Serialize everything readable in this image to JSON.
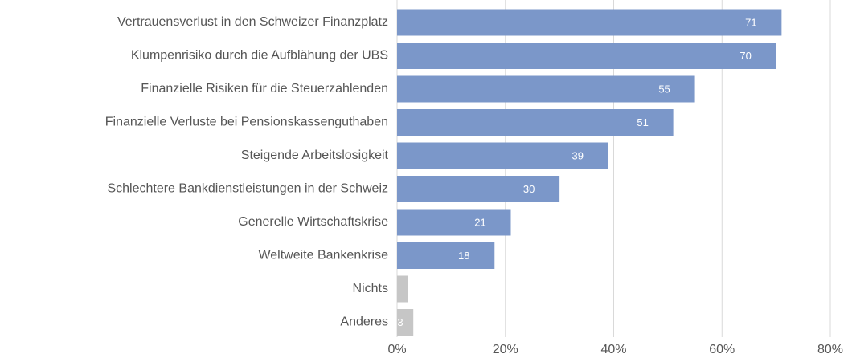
{
  "chart_data": {
    "type": "bar",
    "orientation": "horizontal",
    "categories": [
      "Vertrauensverlust in den Schweizer Finanzplatz",
      "Klumpenrisiko durch die Aufblähung der UBS",
      "Finanzielle Risiken für die Steuerzahlenden",
      "Finanzielle Verluste bei Pensionskassenguthaben",
      "Steigende Arbeitslosigkeit",
      "Schlechtere Bankdienstleistungen in der Schweiz",
      "Generelle Wirtschaftskrise",
      "Weltweite Bankenkrise",
      "Nichts",
      "Anderes"
    ],
    "values": [
      71,
      70,
      55,
      51,
      39,
      30,
      21,
      18,
      2,
      3
    ],
    "value_labels": [
      "71",
      "70",
      "55",
      "51",
      "39",
      "30",
      "21",
      "18",
      null,
      "3"
    ],
    "colors": [
      "#7b97c9",
      "#7b97c9",
      "#7b97c9",
      "#7b97c9",
      "#7b97c9",
      "#7b97c9",
      "#7b97c9",
      "#7b97c9",
      "#c6c6c6",
      "#c6c6c6"
    ],
    "xlim": [
      0,
      80
    ],
    "xticks": [
      {
        "value": 0,
        "label": "0%"
      },
      {
        "value": 20,
        "label": "20%"
      },
      {
        "value": 40,
        "label": "40%"
      },
      {
        "value": 60,
        "label": "60%"
      },
      {
        "value": 80,
        "label": "80%"
      }
    ],
    "grid": true
  }
}
